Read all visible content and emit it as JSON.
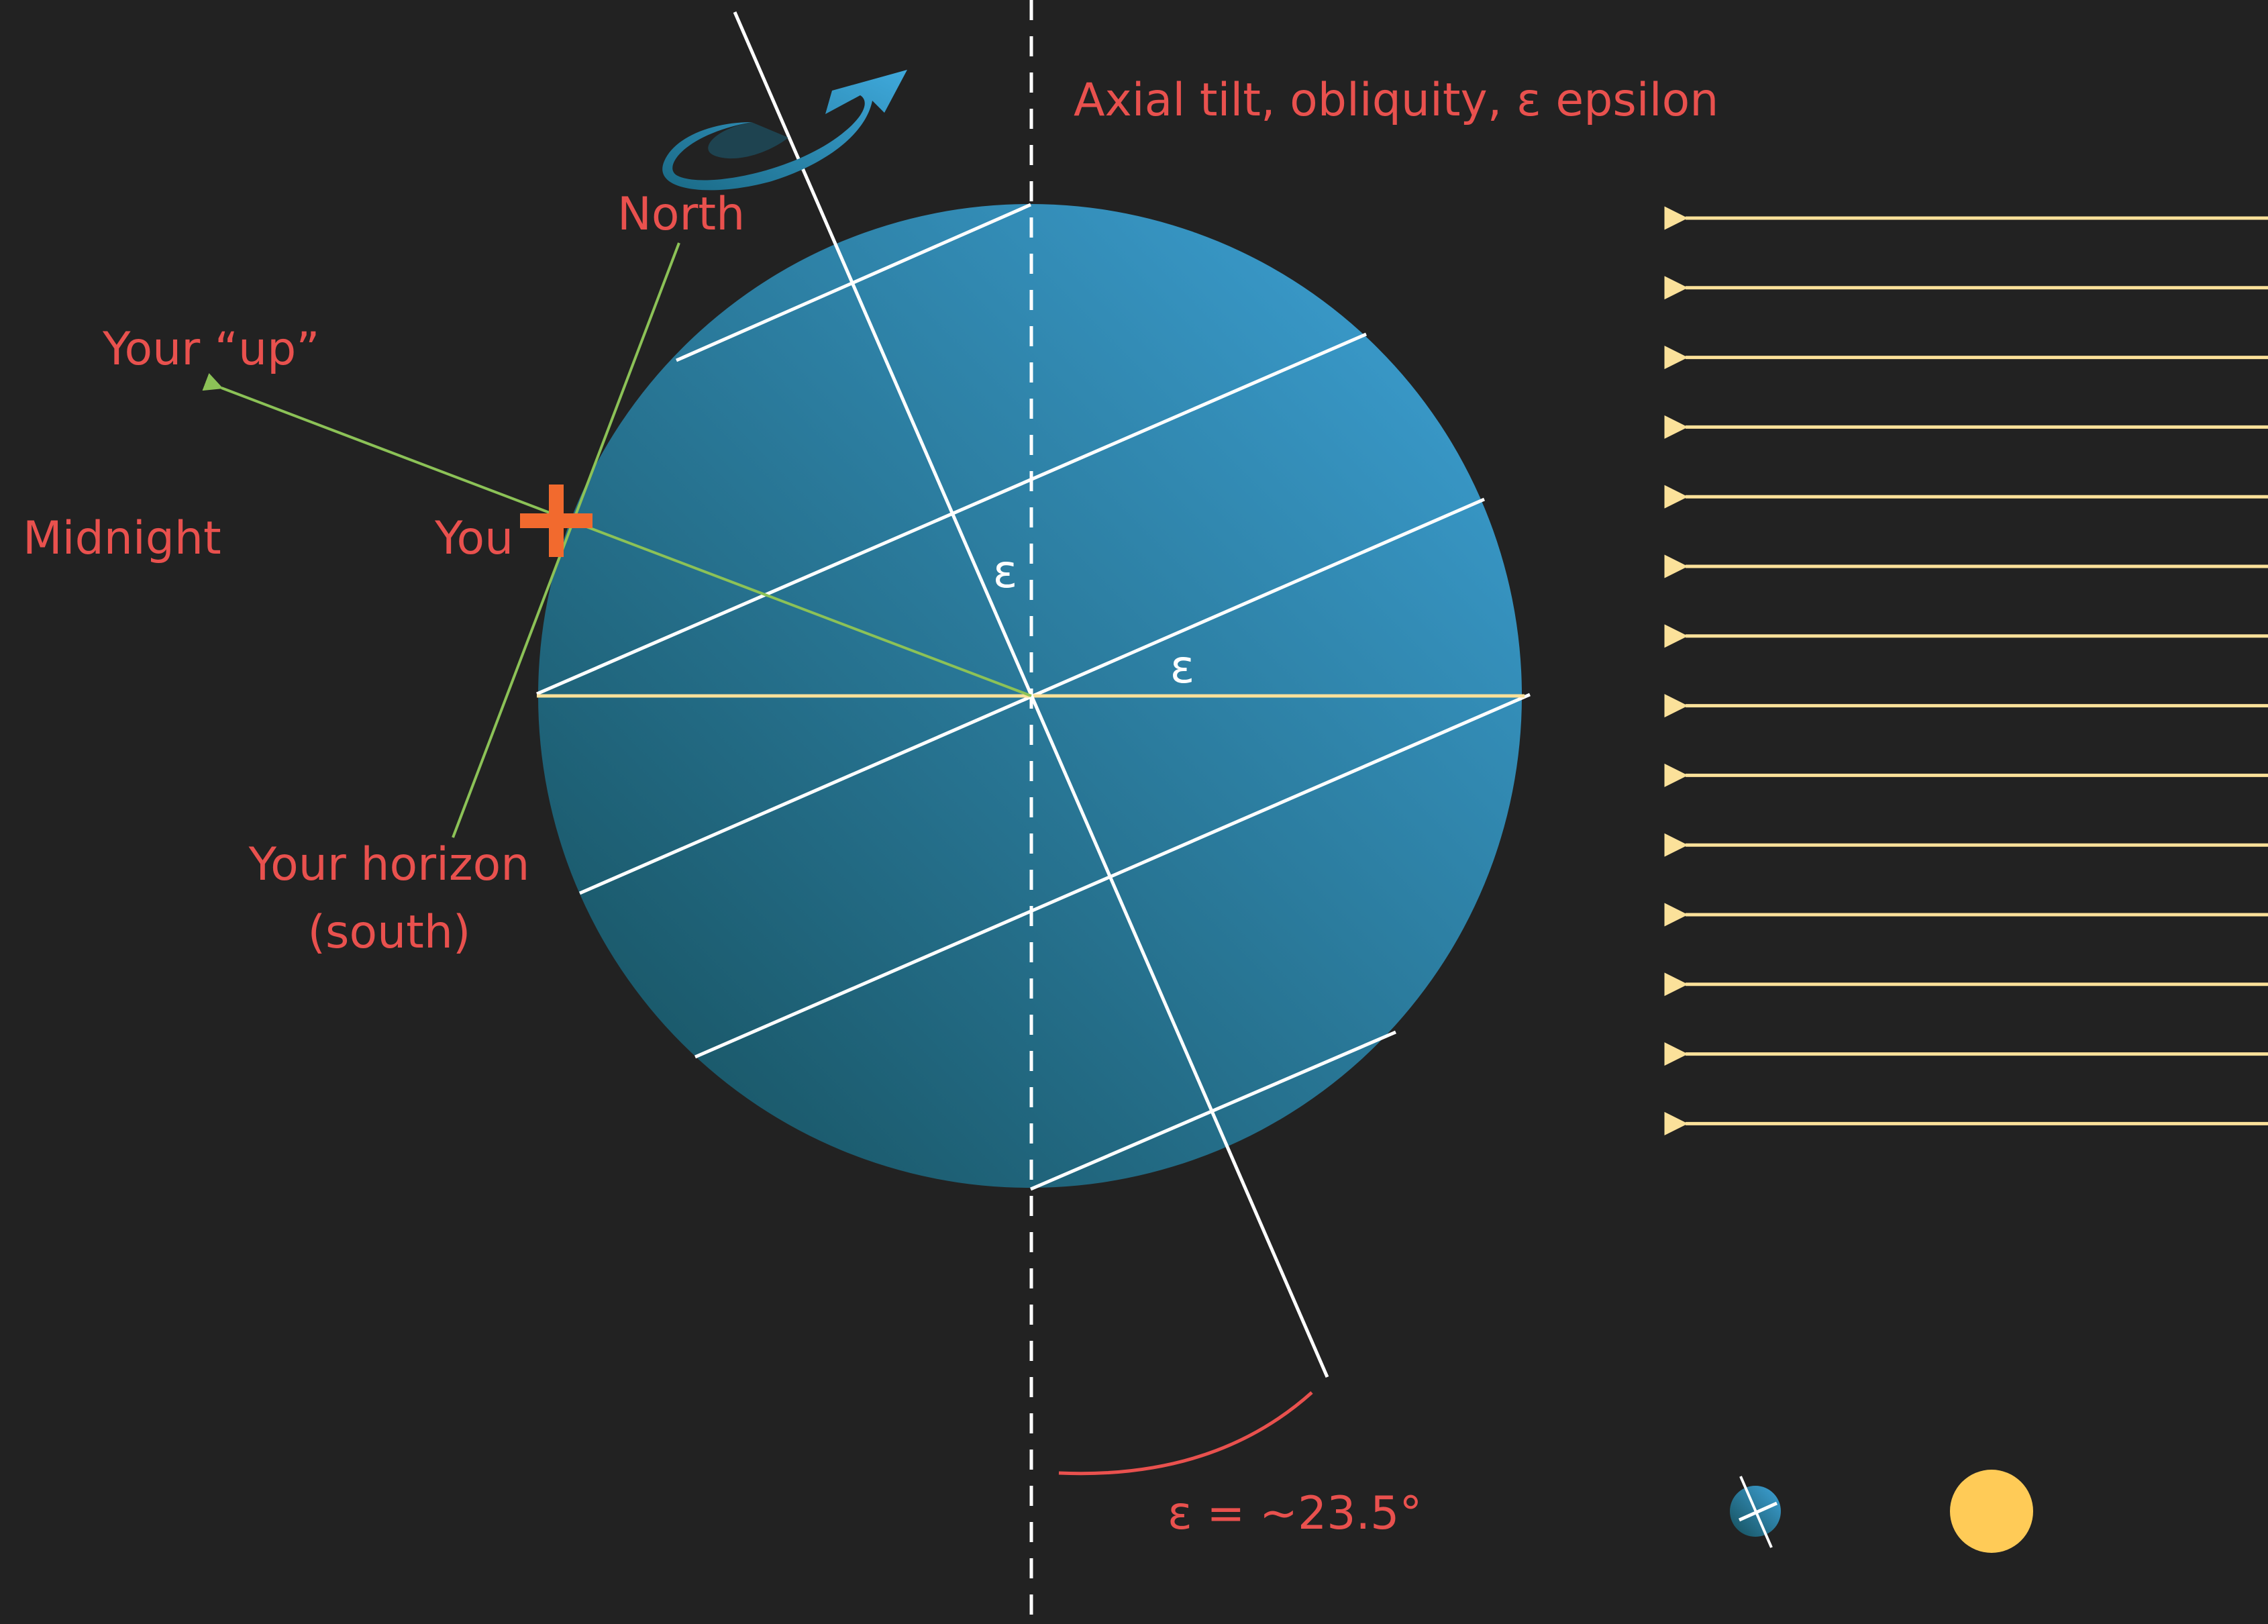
{
  "labels": {
    "title": "Axial tilt, obliquity, ε epsilon",
    "north": "North",
    "your_up": "Your “up”",
    "midnight": "Midnight",
    "you": "You",
    "horizon_line1": "Your horizon",
    "horizon_line2": "(south)",
    "epsilon_axis": "ε",
    "epsilon_equator": "ε",
    "epsilon_value": "ε = ~23.5°"
  },
  "colors": {
    "background": "#222222",
    "label": "#e9514e",
    "sun_rays": "#fbe19a",
    "sun": "#ffcb57",
    "planet_light": "#3ea3d8",
    "planet_dark": "#154e5a",
    "you_marker": "#f26a2e",
    "sightline": "#8cc257"
  },
  "icons": {
    "rotation": "rotation-arrow-icon",
    "you_marker": "plus-icon",
    "sun": "sun-icon",
    "planet": "planet-icon"
  },
  "tilt_degrees": 23.5,
  "sun_ray_count": 14
}
